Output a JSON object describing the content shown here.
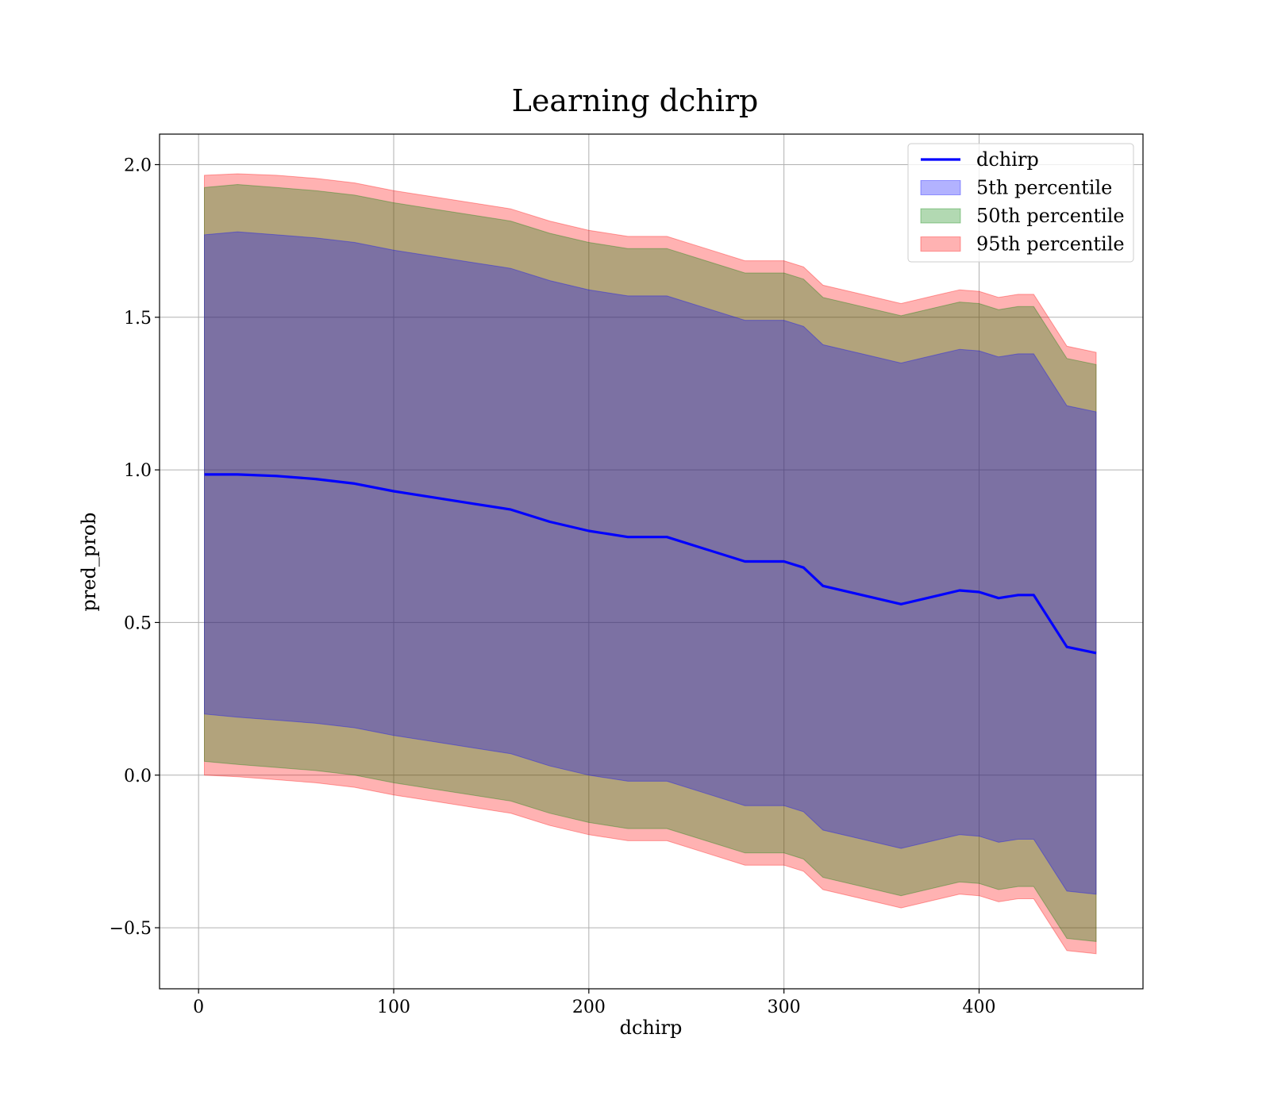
{
  "chart_data": {
    "type": "area",
    "title": "Learning dchirp",
    "xlabel": "dchirp",
    "ylabel": "pred_prob",
    "xlim": [
      -20,
      484
    ],
    "ylim": [
      -0.7,
      2.1
    ],
    "xticks": [
      0,
      100,
      200,
      300,
      400
    ],
    "xtick_labels": [
      "0",
      "100",
      "200",
      "300",
      "400"
    ],
    "yticks": [
      -0.5,
      0.0,
      0.5,
      1.0,
      1.5,
      2.0
    ],
    "ytick_labels": [
      "−0.5",
      "0.0",
      "0.5",
      "1.0",
      "1.5",
      "2.0"
    ],
    "grid": true,
    "legend_position": "top-right",
    "x": [
      3,
      20,
      40,
      60,
      80,
      100,
      120,
      140,
      160,
      180,
      200,
      220,
      240,
      260,
      280,
      300,
      310,
      320,
      340,
      360,
      380,
      390,
      400,
      410,
      420,
      428,
      445,
      460
    ],
    "line": {
      "name": "dchirp",
      "color": "#0000ff",
      "values": [
        0.985,
        0.985,
        0.98,
        0.97,
        0.955,
        0.93,
        0.91,
        0.89,
        0.87,
        0.83,
        0.8,
        0.78,
        0.78,
        0.74,
        0.7,
        0.7,
        0.68,
        0.62,
        0.59,
        0.56,
        0.59,
        0.605,
        0.6,
        0.58,
        0.59,
        0.59,
        0.42,
        0.4
      ]
    },
    "bands": [
      {
        "name": "5th percentile",
        "color": "#0000ff",
        "lower": [
          0.2,
          0.19,
          0.18,
          0.17,
          0.155,
          0.13,
          0.11,
          0.09,
          0.07,
          0.03,
          0.0,
          -0.02,
          -0.02,
          -0.06,
          -0.1,
          -0.1,
          -0.12,
          -0.18,
          -0.21,
          -0.24,
          -0.21,
          -0.195,
          -0.2,
          -0.22,
          -0.21,
          -0.21,
          -0.38,
          -0.39
        ],
        "upper": [
          1.77,
          1.78,
          1.77,
          1.76,
          1.745,
          1.72,
          1.7,
          1.68,
          1.66,
          1.62,
          1.59,
          1.57,
          1.57,
          1.53,
          1.49,
          1.49,
          1.47,
          1.41,
          1.38,
          1.35,
          1.38,
          1.395,
          1.39,
          1.37,
          1.38,
          1.38,
          1.21,
          1.19
        ]
      },
      {
        "name": "50th percentile",
        "color": "#008000",
        "lower": [
          0.045,
          0.035,
          0.025,
          0.015,
          0.0,
          -0.025,
          -0.045,
          -0.065,
          -0.085,
          -0.125,
          -0.155,
          -0.175,
          -0.175,
          -0.215,
          -0.255,
          -0.255,
          -0.275,
          -0.335,
          -0.365,
          -0.395,
          -0.365,
          -0.35,
          -0.355,
          -0.375,
          -0.365,
          -0.365,
          -0.535,
          -0.545
        ],
        "upper": [
          1.925,
          1.935,
          1.925,
          1.915,
          1.9,
          1.875,
          1.855,
          1.835,
          1.815,
          1.775,
          1.745,
          1.725,
          1.725,
          1.685,
          1.645,
          1.645,
          1.625,
          1.565,
          1.535,
          1.505,
          1.535,
          1.55,
          1.545,
          1.525,
          1.535,
          1.535,
          1.365,
          1.345
        ]
      },
      {
        "name": "95th percentile",
        "color": "#ff0000",
        "lower": [
          0.0,
          -0.005,
          -0.015,
          -0.025,
          -0.04,
          -0.065,
          -0.085,
          -0.105,
          -0.125,
          -0.165,
          -0.195,
          -0.215,
          -0.215,
          -0.255,
          -0.295,
          -0.295,
          -0.315,
          -0.375,
          -0.405,
          -0.435,
          -0.405,
          -0.39,
          -0.395,
          -0.415,
          -0.405,
          -0.405,
          -0.575,
          -0.585
        ],
        "upper": [
          1.965,
          1.97,
          1.965,
          1.955,
          1.94,
          1.915,
          1.895,
          1.875,
          1.855,
          1.815,
          1.785,
          1.765,
          1.765,
          1.725,
          1.685,
          1.685,
          1.665,
          1.605,
          1.575,
          1.545,
          1.575,
          1.59,
          1.585,
          1.565,
          1.575,
          1.575,
          1.405,
          1.385
        ]
      }
    ]
  }
}
